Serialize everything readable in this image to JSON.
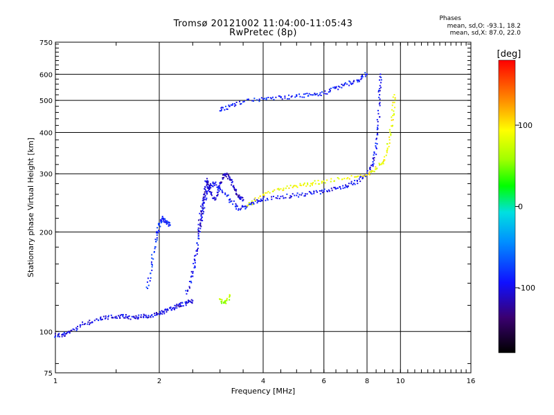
{
  "chart_data": {
    "type": "scatter",
    "title": "Tromsø 20121002 11:04:00-11:05:43",
    "subtitle": "RwPretec (8p)",
    "xlabel": "Frequency [MHz]",
    "ylabel": "Stationary phase Virtual Height [km]",
    "x_scale": "log2",
    "y_scale": "log",
    "xlim": [
      1,
      16
    ],
    "ylim": [
      75,
      750
    ],
    "x_ticks": [
      1,
      2,
      4,
      6,
      8,
      10,
      16
    ],
    "y_ticks": [
      75,
      100,
      200,
      300,
      400,
      500,
      600,
      750
    ],
    "grid": true,
    "stats": {
      "heading": "Phases",
      "line_o": "mean, sd,O: -93.1, 18.2",
      "line_x": "mean, sd,X: 87.0, 22.0"
    },
    "colorbar": {
      "label": "[deg]",
      "range": [
        -180,
        180
      ],
      "ticks": [
        "100",
        "0",
        "-100"
      ],
      "tick_values": [
        100,
        0,
        -100
      ]
    },
    "traces": [
      {
        "phase": -100,
        "points": [
          [
            1.0,
            97
          ],
          [
            1.05,
            98
          ],
          [
            1.1,
            99
          ],
          [
            1.2,
            105
          ],
          [
            1.3,
            108
          ],
          [
            1.4,
            110
          ],
          [
            1.5,
            111
          ],
          [
            1.6,
            111
          ],
          [
            1.7,
            110
          ],
          [
            1.8,
            111
          ],
          [
            1.9,
            112
          ],
          [
            2.0,
            113
          ],
          [
            2.1,
            116
          ],
          [
            2.2,
            118
          ],
          [
            2.3,
            120
          ],
          [
            2.4,
            122
          ],
          [
            2.5,
            124
          ]
        ]
      },
      {
        "phase": -85,
        "points": [
          [
            1.85,
            135
          ],
          [
            1.9,
            160
          ],
          [
            1.95,
            190
          ],
          [
            2.0,
            210
          ],
          [
            2.05,
            220
          ],
          [
            2.1,
            215
          ],
          [
            2.15,
            210
          ]
        ]
      },
      {
        "phase": -95,
        "points": [
          [
            2.4,
            130
          ],
          [
            2.5,
            150
          ],
          [
            2.55,
            170
          ],
          [
            2.6,
            195
          ],
          [
            2.65,
            220
          ],
          [
            2.7,
            245
          ],
          [
            2.75,
            265
          ],
          [
            2.8,
            275
          ],
          [
            2.9,
            280
          ],
          [
            3.0,
            270
          ],
          [
            3.2,
            250
          ],
          [
            3.4,
            235
          ],
          [
            3.6,
            240
          ],
          [
            3.8,
            248
          ],
          [
            4.0,
            252
          ],
          [
            4.5,
            256
          ],
          [
            5.0,
            258
          ],
          [
            5.5,
            262
          ],
          [
            6.0,
            265
          ],
          [
            6.5,
            270
          ],
          [
            7.0,
            275
          ],
          [
            7.5,
            285
          ],
          [
            8.0,
            300
          ],
          [
            8.3,
            320
          ],
          [
            8.5,
            360
          ],
          [
            8.6,
            420
          ],
          [
            8.7,
            520
          ],
          [
            8.75,
            600
          ]
        ]
      },
      {
        "phase": -110,
        "points": [
          [
            2.6,
            200
          ],
          [
            2.65,
            230
          ],
          [
            2.7,
            260
          ],
          [
            2.75,
            290
          ],
          [
            2.8,
            270
          ],
          [
            2.9,
            250
          ],
          [
            3.0,
            280
          ],
          [
            3.1,
            300
          ],
          [
            3.2,
            290
          ],
          [
            3.3,
            270
          ],
          [
            3.4,
            255
          ],
          [
            3.5,
            250
          ]
        ]
      },
      {
        "phase": -90,
        "points": [
          [
            3.0,
            465
          ],
          [
            3.2,
            480
          ],
          [
            3.5,
            495
          ],
          [
            4.0,
            505
          ],
          [
            4.5,
            510
          ],
          [
            5.0,
            515
          ],
          [
            5.5,
            520
          ],
          [
            6.0,
            525
          ],
          [
            6.5,
            545
          ],
          [
            7.0,
            560
          ],
          [
            7.5,
            575
          ],
          [
            8.0,
            600
          ]
        ]
      },
      {
        "phase": 90,
        "points": [
          [
            3.6,
            240
          ],
          [
            4.0,
            260
          ],
          [
            4.5,
            270
          ],
          [
            5.0,
            275
          ],
          [
            5.5,
            280
          ],
          [
            6.0,
            285
          ],
          [
            7.0,
            290
          ],
          [
            8.0,
            298
          ],
          [
            8.5,
            310
          ],
          [
            9.0,
            330
          ],
          [
            9.3,
            380
          ],
          [
            9.5,
            450
          ],
          [
            9.6,
            520
          ]
        ]
      },
      {
        "phase": 60,
        "points": [
          [
            3.0,
            125
          ],
          [
            3.1,
            122
          ],
          [
            3.2,
            128
          ]
        ]
      }
    ]
  }
}
